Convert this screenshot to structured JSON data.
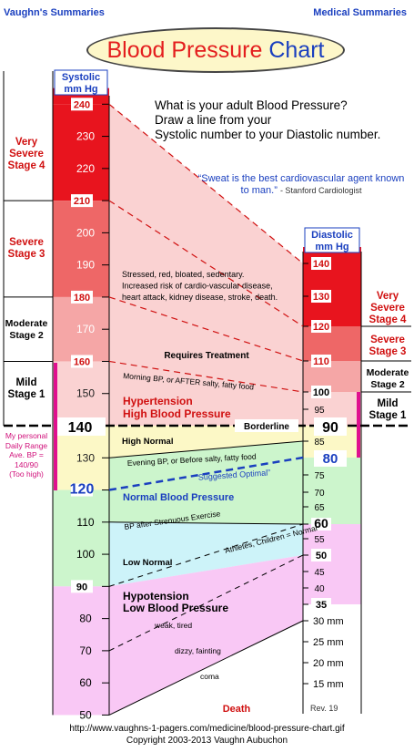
{
  "header": {
    "left": "Vaughn's Summaries",
    "right": "Medical Summaries"
  },
  "title": {
    "part1": "Blood Pressure",
    "part2": "Chart"
  },
  "question": {
    "line1": "What is your adult Blood Pressure?",
    "line2": "Draw a line from your",
    "line3": "Systolic number to your Diastolic number."
  },
  "quote": {
    "text": "“Sweat is the best cardiovascular agent known to man.”",
    "source": "- Stanford Cardiologist"
  },
  "personal_note": {
    "line1": "My personal",
    "line2": "Daily Range",
    "line3": "Ave. BP =",
    "line4": "140/90",
    "line5": "(Too high)"
  },
  "left_stages": [
    {
      "l1": "Very",
      "l2": "Severe",
      "l3": "Stage 4"
    },
    {
      "l1": "Severe",
      "l2": "Stage 3"
    },
    {
      "l1": "Moderate",
      "l2": "Stage 2"
    },
    {
      "l1": "Mild",
      "l2": "Stage 1"
    }
  ],
  "right_stages": [
    {
      "l1": "Very",
      "l2": "Severe",
      "l3": "Stage 4"
    },
    {
      "l1": "Severe",
      "l2": "Stage 3"
    },
    {
      "l1": "Moderate",
      "l2": "Stage 2"
    },
    {
      "l1": "Mild",
      "l2": "Stage 1"
    }
  ],
  "footer": {
    "url": "http://www.vaughns-1-pagers.com/medicine/blood-pressure-chart.gif",
    "copyright": "Copyright 2003-2013  Vaughn Aubuchon"
  },
  "chart_data": {
    "type": "table",
    "systolic_axis": {
      "label_line1": "Systolic",
      "label_line2": "mm Hg",
      "range": [
        50,
        245
      ],
      "ticks": [
        "240",
        "230",
        "220",
        "210",
        "200",
        "190",
        "180",
        "170",
        "160",
        "150",
        "140",
        "130",
        "120",
        "110",
        "100",
        "90",
        "80",
        "70",
        "60",
        "50"
      ],
      "highlighted_ticks": [
        "240",
        "210",
        "180",
        "160",
        "140",
        "120",
        "90"
      ]
    },
    "diastolic_axis": {
      "label_line1": "Diastolic",
      "label_line2": "mm Hg",
      "range": [
        30,
        145
      ],
      "ticks_upper": [
        "140",
        "130",
        "120",
        "110",
        "100",
        "95",
        "90",
        "85",
        "80",
        "75",
        "70",
        "65",
        "60",
        "55",
        "50",
        "45",
        "40",
        "35"
      ],
      "ticks_lower": [
        "30 mm",
        "25 mm",
        "20 mm",
        "15 mm"
      ],
      "highlighted_ticks": [
        "140",
        "130",
        "120",
        "110",
        "100",
        "90",
        "80",
        "60",
        "50",
        "35"
      ],
      "footnote": "Rev. 19"
    },
    "connections": [
      {
        "systolic": 240,
        "diastolic": 140
      },
      {
        "systolic": 210,
        "diastolic": 120
      },
      {
        "systolic": 180,
        "diastolic": 110
      },
      {
        "systolic": 160,
        "diastolic": 100
      },
      {
        "systolic": 120,
        "diastolic": 80
      },
      {
        "systolic": 90,
        "diastolic": 60
      },
      {
        "systolic": 70,
        "diastolic": 50
      }
    ],
    "zones": [
      {
        "name": "Hypertension High Blood Pressure",
        "line1": "Hypertension",
        "line2": "High  Blood  Pressure"
      },
      {
        "name": "High Normal"
      },
      {
        "name": "Normal Blood Pressure"
      },
      {
        "name": "Low Normal"
      },
      {
        "name": "Hypotension Low Blood Pressure",
        "line1": "Hypotension",
        "line2": "Low  Blood  Pressure"
      },
      {
        "name": "Death"
      }
    ],
    "annotations": {
      "stressed": [
        "Stressed, red, bloated, sedentary.",
        "Increased risk of cardio-vascular disease,",
        "heart attack, kidney disease, stroke, death."
      ],
      "requires_treatment": "Requires Treatment",
      "morning": "Morning BP, or AFTER salty, fatty food",
      "borderline": "Borderline",
      "evening": "Evening BP, or Before salty, fatty food",
      "optimal": "“Suggested Optimal”",
      "exercise": "BP after Strenuous Exercise",
      "athletes": "Athletes, Children = Normal",
      "weak": "weak, tired",
      "dizzy": "dizzy, fainting",
      "coma": "coma"
    },
    "colors": {
      "stage4": "#e8141e",
      "stage3": "#ee6767",
      "stage2": "#f5a6a6",
      "stage1": "#fad2d2",
      "high_normal": "#fcf8c6",
      "normal": "#ccf5cc",
      "low_normal": "#cdf3f9",
      "hypotension": "#f9c8f5",
      "personal": "#e0108f",
      "blue": "#1a3fbf",
      "red_text": "#d01010"
    }
  }
}
